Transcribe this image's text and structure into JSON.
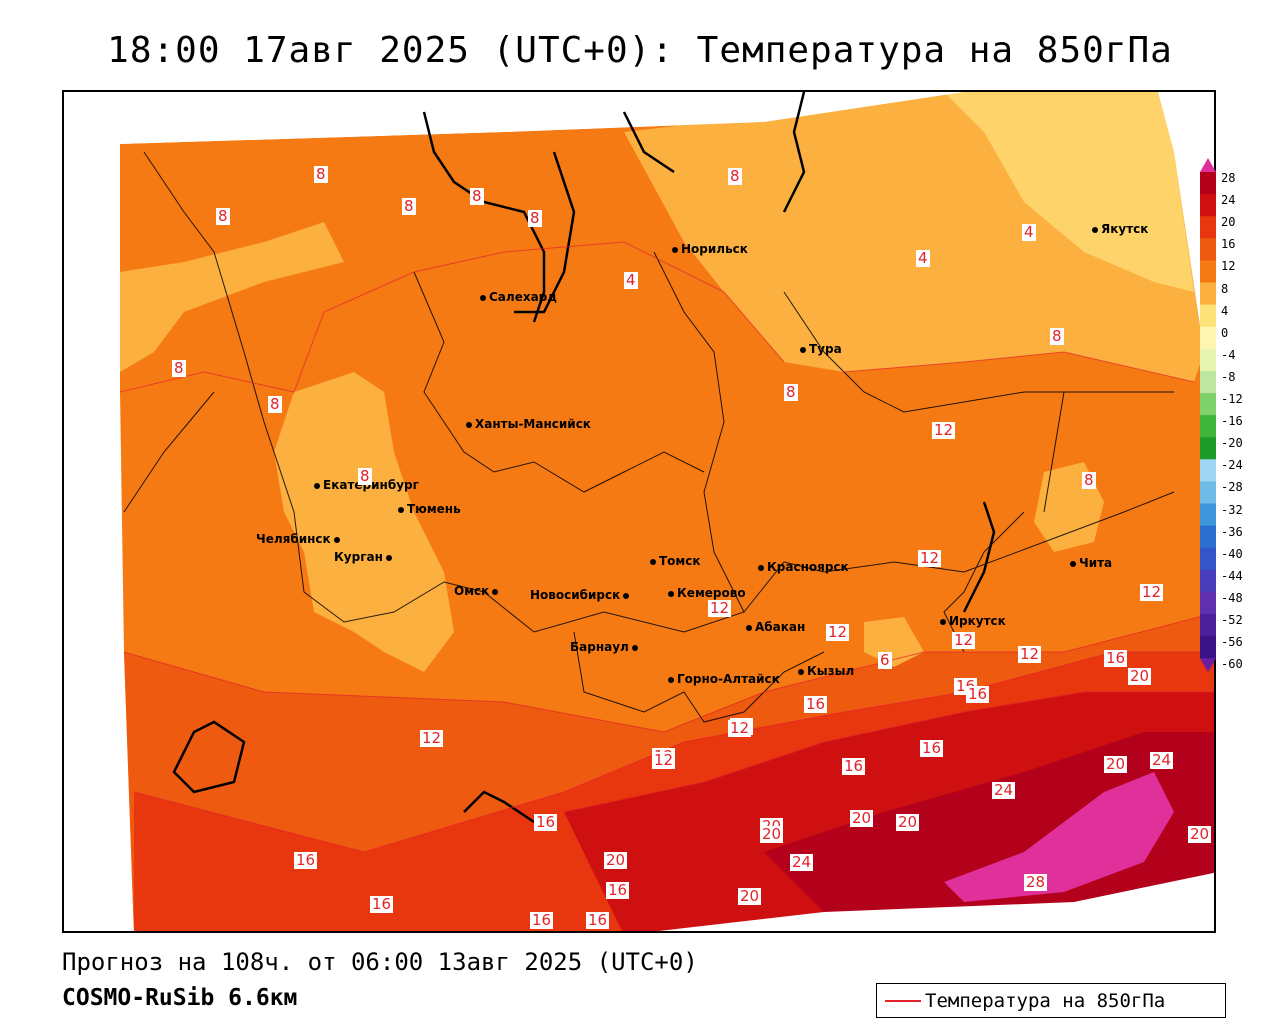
{
  "title": "18:00 17авг 2025 (UTC+0): Температура на 850гПа",
  "forecast_line": "Прогноз на 108ч. от 06:00 13авг 2025 (UTC+0)",
  "model_line": "COSMO-RuSib 6.6км",
  "legend": {
    "label": "Температура на 850гПа",
    "line_color": "#e2232a"
  },
  "scale": {
    "ticks": [
      "28",
      "24",
      "20",
      "16",
      "12",
      "8",
      "4",
      "0",
      "-4",
      "-8",
      "-12",
      "-16",
      "-20",
      "-24",
      "-28",
      "-32",
      "-36",
      "-40",
      "-44",
      "-48",
      "-52",
      "-56",
      "-60"
    ],
    "colors": [
      "#e0309a",
      "#b3001b",
      "#cf1010",
      "#e8360f",
      "#ee5a10",
      "#f57a14",
      "#fbb040",
      "#fde27a",
      "#fdf6b0",
      "#e8f5b0",
      "#bfe6a0",
      "#7fd26a",
      "#3fb53a",
      "#1e9a2a",
      "#9fd6f2",
      "#6fbce8",
      "#3e97dc",
      "#2d6fd0",
      "#3355c8",
      "#4a3ebc",
      "#5f30b0",
      "#4b1f9a",
      "#3a1486",
      "#6b1fa0"
    ]
  },
  "cities": [
    {
      "name": "Норильск"
    },
    {
      "name": "Якутск"
    },
    {
      "name": "Салехард"
    },
    {
      "name": "Тура"
    },
    {
      "name": "Ханты-Мансийск"
    },
    {
      "name": "Екатеринбург"
    },
    {
      "name": "Тюмень"
    },
    {
      "name": "Челябинск"
    },
    {
      "name": "Курган"
    },
    {
      "name": "Омск"
    },
    {
      "name": "Новосибирск"
    },
    {
      "name": "Томск"
    },
    {
      "name": "Кемерово"
    },
    {
      "name": "Красноярск"
    },
    {
      "name": "Абакан"
    },
    {
      "name": "Барнаул"
    },
    {
      "name": "Горно-Алтайск"
    },
    {
      "name": "Кызыл"
    },
    {
      "name": "Иркутск"
    },
    {
      "name": "Чита"
    }
  ],
  "contour_labels": [
    "8",
    "8",
    "8",
    "8",
    "8",
    "4",
    "8",
    "4",
    "4",
    "8",
    "8",
    "8",
    "8",
    "8",
    "12",
    "12",
    "8",
    "12",
    "12",
    "12",
    "12",
    "6",
    "12",
    "16",
    "16",
    "16",
    "16",
    "16",
    "16",
    "12",
    "12",
    "12",
    "16",
    "16",
    "20",
    "20",
    "20",
    "20",
    "24",
    "24",
    "24",
    "20",
    "20",
    "28",
    "16",
    "16",
    "16",
    "20",
    "20",
    "12",
    "16",
    "20",
    "12"
  ]
}
